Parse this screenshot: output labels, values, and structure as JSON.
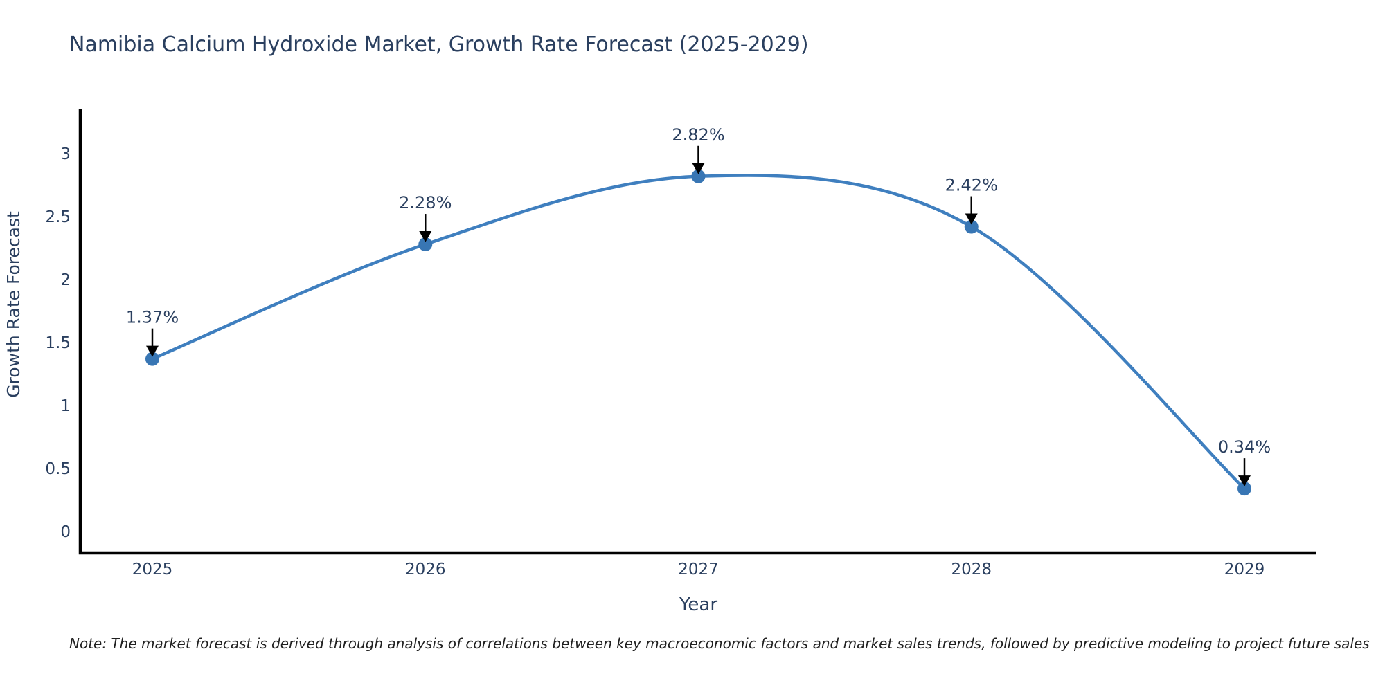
{
  "chart_data": {
    "type": "line",
    "curve": "spline",
    "title": "Namibia Calcium Hydroxide Market, Growth Rate Forecast (2025-2029)",
    "xlabel": "Year",
    "ylabel": "Growth Rate Forecast",
    "x": [
      "2025",
      "2026",
      "2027",
      "2028",
      "2029"
    ],
    "series": [
      {
        "name": "Growth Rate Forecast",
        "values": [
          1.37,
          2.28,
          2.82,
          2.42,
          0.34
        ]
      }
    ],
    "point_labels": [
      "1.37%",
      "2.28%",
      "2.82%",
      "2.42%",
      "0.34%"
    ],
    "ylim": [
      0,
      3
    ],
    "yticks": [
      "0",
      "0.5",
      "1",
      "1.5",
      "2",
      "2.5",
      "3"
    ],
    "grid": false,
    "legend_position": "none",
    "colors": {
      "line": "#3f7fbf",
      "marker": "#3876b4",
      "axis": "#000000",
      "text": "#2a3f5f",
      "annotation_text": "#2a3f5f",
      "annotation_arrow": "#000000",
      "background": "#ffffff"
    }
  },
  "note": "Note: The market forecast is derived through analysis of correlations between key macroeconomic factors and market sales trends, followed by predictive modeling to project future sales"
}
